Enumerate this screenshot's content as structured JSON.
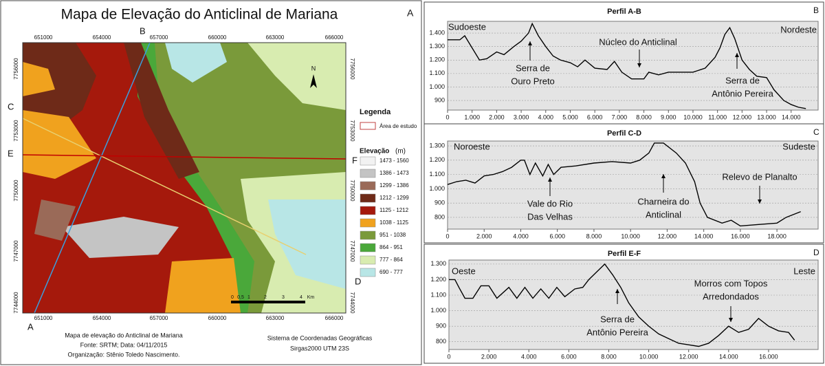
{
  "map": {
    "title": "Mapa de Elevação do Anticlinal de Mariana",
    "panel": "A",
    "x_ticks": [
      "651000",
      "654000",
      "657000",
      "660000",
      "663000",
      "666000"
    ],
    "y_ticks": [
      "7756000",
      "7753000",
      "7750000",
      "7747000",
      "7744000"
    ],
    "profile_ends": [
      "A",
      "B",
      "C",
      "D",
      "E",
      "F"
    ],
    "north": "N",
    "scale": [
      "0",
      "0,5",
      "1",
      "2",
      "3",
      "4",
      "Km"
    ],
    "legend": {
      "title": "Legenda",
      "study_area": "Área de estudo",
      "elevation_title": "Elevação",
      "elevation_unit": "(m)",
      "classes": [
        {
          "label": "1473 - 1560",
          "color": "#f2f2f2"
        },
        {
          "label": "1386 - 1473",
          "color": "#c4c4c4"
        },
        {
          "label": "1299 - 1386",
          "color": "#9a6a58"
        },
        {
          "label": "1212 - 1299",
          "color": "#6e2a18"
        },
        {
          "label": "1125 - 1212",
          "color": "#a5190c"
        },
        {
          "label": "1038 - 1125",
          "color": "#f0a21e"
        },
        {
          "label": "951 - 1038",
          "color": "#7a9a3a"
        },
        {
          "label": "864 - 951",
          "color": "#4aa83a"
        },
        {
          "label": "777 - 864",
          "color": "#d8ecb0"
        },
        {
          "label": "690 - 777",
          "color": "#b8e6e6"
        }
      ]
    },
    "footer_left": [
      "Mapa de elevação do Anticlinal de Mariana",
      "Fonte: SRTM; Data: 04/11/2015",
      "Organização: Stênio Toledo Nascimento."
    ],
    "footer_right": [
      "Sistema de Coordenadas Geográficas",
      "Sirgas2000 UTM 23S"
    ]
  },
  "chart_data": [
    {
      "type": "line",
      "title": "Perfil A-B",
      "panel": "B",
      "direction_labels": [
        "Sudoeste",
        "Nordeste"
      ],
      "annotations": [
        [
          "Serra de",
          "Ouro Preto"
        ],
        [
          "Núcleo do Anticlinal"
        ],
        [
          "Serra de",
          "Antônio Pereira"
        ]
      ],
      "x": [
        0,
        500,
        700,
        1000,
        1300,
        1600,
        2000,
        2300,
        2700,
        3000,
        3300,
        3450,
        3700,
        4000,
        4300,
        4600,
        5000,
        5300,
        5600,
        6000,
        6500,
        6800,
        7100,
        7500,
        8000,
        8200,
        8600,
        9000,
        10000,
        10500,
        10900,
        11100,
        11300,
        11500,
        11700,
        12000,
        12300,
        12600,
        13000,
        13300,
        13700,
        14000,
        14300,
        14600
      ],
      "series": [
        {
          "name": "Perfil A-B",
          "color": "#000000",
          "values": [
            1350,
            1350,
            1380,
            1290,
            1200,
            1210,
            1260,
            1240,
            1300,
            1340,
            1400,
            1470,
            1380,
            1300,
            1230,
            1200,
            1180,
            1150,
            1200,
            1140,
            1130,
            1190,
            1110,
            1060,
            1060,
            1110,
            1090,
            1110,
            1110,
            1140,
            1220,
            1290,
            1390,
            1440,
            1360,
            1200,
            1130,
            1080,
            1070,
            980,
            900,
            870,
            850,
            840
          ]
        }
      ],
      "xlim": [
        0,
        15100
      ],
      "ylim": [
        829,
        1487
      ],
      "xticks": [
        0,
        {
          "value": 1000,
          "label": "1.000"
        },
        {
          "value": 2000,
          "label": "2.000"
        },
        {
          "value": 3000,
          "label": "3.000"
        },
        {
          "value": 4000,
          "label": "4.000"
        },
        {
          "value": 5000,
          "label": "5.000"
        },
        {
          "value": 6000,
          "label": "6.000"
        },
        {
          "value": 7000,
          "label": "7.000"
        },
        {
          "value": 8000,
          "label": "8.000"
        },
        {
          "value": 9000,
          "label": "9.000"
        },
        {
          "value": 10000,
          "label": "10.000"
        },
        {
          "value": 11000,
          "label": "11.000"
        },
        {
          "value": 12000,
          "label": "12.000"
        },
        {
          "value": 13000,
          "label": "13.000"
        },
        {
          "value": 14000,
          "label": "14.000"
        }
      ],
      "yticks": [
        900,
        {
          "value": 1000,
          "label": "1.000"
        },
        {
          "value": 1100,
          "label": "1.100"
        },
        {
          "value": 1200,
          "label": "1.200"
        },
        {
          "value": 1300,
          "label": "1.300"
        },
        {
          "value": 1400,
          "label": "1.400"
        }
      ],
      "grid": true
    },
    {
      "type": "line",
      "title": "Perfil C-D",
      "panel": "C",
      "direction_labels": [
        "Noroeste",
        "Sudeste"
      ],
      "annotations": [
        [
          "Vale do Rio",
          "Das Velhas"
        ],
        [
          "Charneira do",
          "Anticlinal"
        ],
        [
          "Relevo de Planalto"
        ]
      ],
      "x": [
        0,
        500,
        1000,
        1500,
        2000,
        2500,
        3000,
        3500,
        4000,
        4200,
        4500,
        4800,
        5200,
        5500,
        5800,
        6200,
        7000,
        8000,
        9000,
        10000,
        10500,
        11000,
        11300,
        11800,
        12500,
        13000,
        13500,
        13800,
        14200,
        15000,
        15500,
        16000,
        17000,
        18000,
        18500,
        19300
      ],
      "series": [
        {
          "name": "Perfil C-D",
          "color": "#000000",
          "values": [
            1030,
            1050,
            1060,
            1040,
            1090,
            1100,
            1120,
            1150,
            1200,
            1200,
            1100,
            1180,
            1090,
            1170,
            1100,
            1150,
            1160,
            1180,
            1190,
            1180,
            1200,
            1250,
            1320,
            1320,
            1250,
            1180,
            1050,
            900,
            800,
            760,
            780,
            740,
            750,
            760,
            800,
            840
          ]
        }
      ],
      "xlim": [
        0,
        20250
      ],
      "ylim": [
        718,
        1334
      ],
      "xticks": [
        0,
        {
          "value": 2000,
          "label": "2.000"
        },
        {
          "value": 4000,
          "label": "4.000"
        },
        {
          "value": 6000,
          "label": "6.000"
        },
        {
          "value": 8000,
          "label": "8.000"
        },
        {
          "value": 10000,
          "label": "10.000"
        },
        {
          "value": 12000,
          "label": "12.000"
        },
        {
          "value": 14000,
          "label": "14.000"
        },
        {
          "value": 16000,
          "label": "16.000"
        },
        {
          "value": 18000,
          "label": "18.000"
        }
      ],
      "yticks": [
        800,
        900,
        {
          "value": 1000,
          "label": "1.000"
        },
        {
          "value": 1100,
          "label": "1.100"
        },
        {
          "value": 1200,
          "label": "1.200"
        },
        {
          "value": 1300,
          "label": "1.300"
        }
      ],
      "grid": true
    },
    {
      "type": "line",
      "title": "Perfil E-F",
      "panel": "D",
      "direction_labels": [
        "Oeste",
        "Leste"
      ],
      "annotations": [
        [
          "Serra de",
          "Antônio Pereira"
        ],
        [
          "Morros com Topos",
          "Arredondados"
        ]
      ],
      "x": [
        0,
        300,
        500,
        800,
        1200,
        1600,
        2000,
        2400,
        3000,
        3400,
        3800,
        4200,
        4600,
        5000,
        5400,
        5800,
        6300,
        6700,
        7000,
        7400,
        7800,
        8200,
        8600,
        9000,
        9500,
        10000,
        10500,
        11000,
        11500,
        12000,
        12500,
        13000,
        13500,
        14000,
        14500,
        15000,
        15500,
        16000,
        16500,
        17000,
        17300
      ],
      "series": [
        {
          "name": "Perfil E-F",
          "color": "#000000",
          "values": [
            1200,
            1200,
            1150,
            1080,
            1080,
            1160,
            1160,
            1080,
            1150,
            1080,
            1150,
            1080,
            1140,
            1080,
            1150,
            1090,
            1140,
            1150,
            1200,
            1250,
            1300,
            1230,
            1150,
            1050,
            960,
            900,
            850,
            820,
            790,
            780,
            770,
            790,
            840,
            900,
            860,
            880,
            950,
            900,
            870,
            860,
            810
          ]
        }
      ],
      "xlim": [
        0,
        18480
      ],
      "ylim": [
        750,
        1326
      ],
      "xticks": [
        0,
        {
          "value": 2000,
          "label": "2.000"
        },
        {
          "value": 4000,
          "label": "4.000"
        },
        {
          "value": 6000,
          "label": "6.000"
        },
        {
          "value": 8000,
          "label": "8.000"
        },
        {
          "value": 10000,
          "label": "10.000"
        },
        {
          "value": 12000,
          "label": "12.000"
        },
        {
          "value": 14000,
          "label": "14.000"
        },
        {
          "value": 16000,
          "label": "16.000"
        }
      ],
      "yticks": [
        800,
        900,
        {
          "value": 1000,
          "label": "1.000"
        },
        {
          "value": 1100,
          "label": "1.100"
        },
        {
          "value": 1200,
          "label": "1.200"
        },
        {
          "value": 1300,
          "label": "1.300"
        }
      ],
      "grid": true
    }
  ]
}
